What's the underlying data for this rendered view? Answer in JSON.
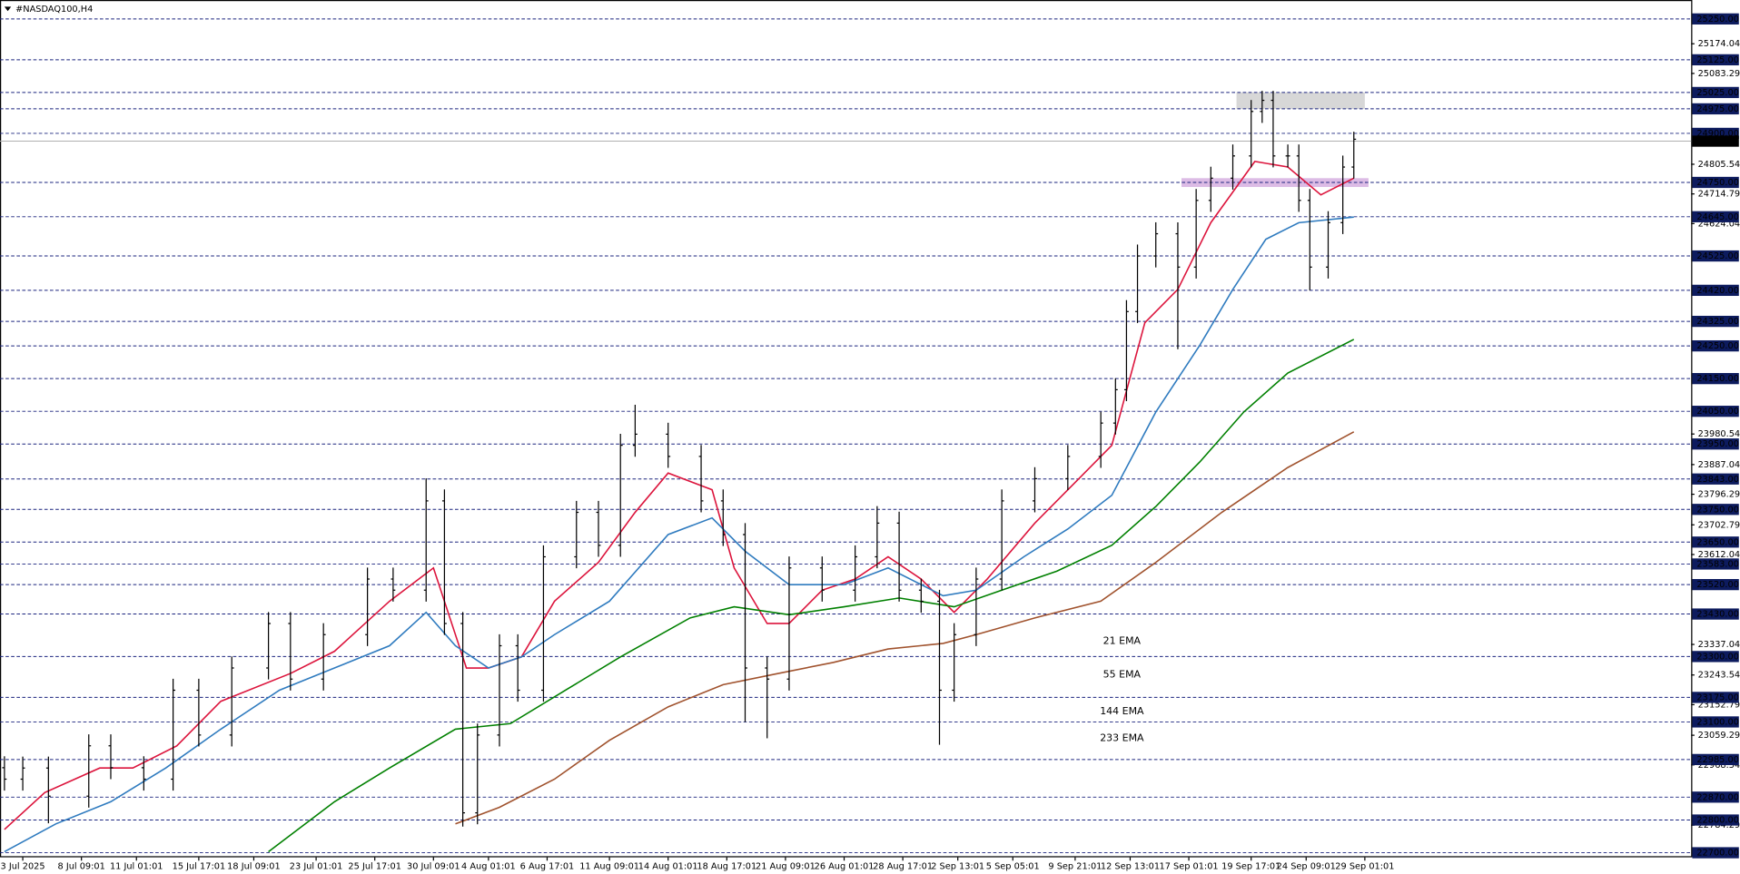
{
  "chart_data": {
    "type": "ohlc",
    "title": "#NASDAQ100,H4",
    "xlim": [
      0,
      460
    ],
    "ylim": [
      22686,
      25267
    ],
    "candles": {
      "color": "#000000",
      "x": [
        0,
        5,
        12,
        23,
        29,
        38,
        46,
        53,
        62,
        72,
        78,
        87,
        99,
        106,
        115,
        120,
        125,
        129,
        135,
        140,
        147,
        156,
        162,
        168,
        172,
        181,
        190,
        196,
        202,
        208,
        214,
        223,
        232,
        238,
        244,
        250,
        255,
        259,
        265,
        272,
        281,
        290,
        299,
        303,
        306,
        309,
        314,
        320,
        325,
        329,
        335,
        340,
        343,
        346,
        350,
        353,
        356,
        361,
        365,
        368
      ],
      "open": [
        22960,
        22925,
        22959,
        22873,
        23027,
        22960,
        22925,
        23197,
        23060,
        23265,
        23401,
        23231,
        23367,
        23537,
        23503,
        23776,
        23401,
        22822,
        23060,
        23333,
        23197,
        23605,
        23741,
        23640,
        23946,
        23980,
        23912,
        23776,
        23673,
        23265,
        23231,
        23571,
        23503,
        23605,
        23708,
        23503,
        23469,
        23197,
        23367,
        23537,
        23776,
        23844,
        23912,
        24014,
        24116,
        24355,
        24525,
        24593,
        24491,
        24695,
        24763,
        24831,
        24967,
        25001,
        24831,
        24831,
        24695,
        24491,
        24627,
        24797
      ],
      "high": [
        22995,
        22994,
        22994,
        23062,
        23062,
        22995,
        23232,
        23232,
        23300,
        23436,
        23436,
        23402,
        23572,
        23572,
        23845,
        23811,
        23436,
        23095,
        23368,
        23368,
        23640,
        23776,
        23776,
        23981,
        24070,
        24015,
        23947,
        23811,
        23708,
        23300,
        23606,
        23606,
        23640,
        23760,
        23743,
        23538,
        23504,
        23402,
        23572,
        23811,
        23879,
        23947,
        24049,
        24151,
        24390,
        24560,
        24628,
        24628,
        24730,
        24798,
        24866,
        25002,
        25030,
        25030,
        24866,
        24866,
        24730,
        24662,
        24832,
        24905
      ],
      "low": [
        22890,
        22890,
        22790,
        22838,
        22925,
        22890,
        22890,
        23025,
        23025,
        23230,
        23196,
        23196,
        23332,
        23468,
        23468,
        23366,
        22780,
        22787,
        23025,
        23162,
        23162,
        23570,
        23605,
        23605,
        23911,
        23877,
        23741,
        23638,
        23100,
        23050,
        23196,
        23468,
        23468,
        23570,
        23468,
        23434,
        23030,
        23162,
        23332,
        23502,
        23741,
        23809,
        23877,
        23979,
        24081,
        24320,
        24490,
        24240,
        24456,
        24660,
        24728,
        24796,
        24932,
        24796,
        24796,
        24660,
        24420,
        24456,
        24592,
        24762
      ],
      "close": [
        22925,
        22959,
        22873,
        23027,
        22960,
        22925,
        23197,
        23060,
        23265,
        23401,
        23231,
        23367,
        23537,
        23503,
        23776,
        23401,
        22822,
        23060,
        23333,
        23197,
        23605,
        23741,
        23640,
        23946,
        23980,
        23912,
        23776,
        23673,
        23265,
        23231,
        23571,
        23503,
        23605,
        23708,
        23503,
        23469,
        23197,
        23367,
        23537,
        23776,
        23844,
        23912,
        24014,
        24116,
        24355,
        24525,
        24593,
        24491,
        24695,
        24763,
        24831,
        24967,
        25001,
        24831,
        24831,
        24695,
        24491,
        24627,
        24797,
        24882
      ]
    },
    "series": [
      {
        "name": "21 EMA",
        "color": "#dc143c",
        "x": [
          0,
          11,
          26,
          35,
          47,
          59,
          78,
          90,
          105,
          117,
          126,
          132,
          141,
          150,
          162,
          172,
          181,
          193,
          199,
          208,
          214,
          223,
          232,
          241,
          250,
          259,
          268,
          281,
          293,
          302,
          311,
          320,
          329,
          341,
          350,
          359,
          368
        ],
        "values": [
          22771,
          22884,
          22959,
          22959,
          23027,
          23163,
          23248,
          23316,
          23469,
          23571,
          23265,
          23265,
          23299,
          23469,
          23588,
          23741,
          23861,
          23810,
          23571,
          23401,
          23401,
          23503,
          23537,
          23605,
          23537,
          23435,
          23537,
          23708,
          23844,
          23946,
          24321,
          24423,
          24627,
          24814,
          24797,
          24712,
          24763
        ]
      },
      {
        "name": "55 EMA",
        "color": "#2f7bbf",
        "x": [
          0,
          14,
          29,
          44,
          59,
          75,
          90,
          105,
          115,
          123,
          132,
          141,
          150,
          165,
          181,
          193,
          202,
          214,
          229,
          241,
          256,
          265,
          278,
          290,
          302,
          314,
          326,
          335,
          344,
          353,
          368
        ],
        "values": [
          22703,
          22788,
          22856,
          22959,
          23078,
          23197,
          23265,
          23333,
          23435,
          23333,
          23265,
          23299,
          23367,
          23469,
          23673,
          23724,
          23622,
          23520,
          23520,
          23571,
          23486,
          23503,
          23605,
          23690,
          23793,
          24048,
          24252,
          24423,
          24576,
          24627,
          24644
        ]
      },
      {
        "name": "144 EMA",
        "color": "#008000",
        "x": [
          72,
          90,
          105,
          123,
          138,
          153,
          168,
          187,
          199,
          214,
          229,
          244,
          259,
          272,
          287,
          302,
          314,
          326,
          338,
          350,
          368
        ],
        "values": [
          22703,
          22856,
          22959,
          23078,
          23095,
          23197,
          23299,
          23418,
          23452,
          23428,
          23452,
          23479,
          23452,
          23503,
          23561,
          23640,
          23759,
          23895,
          24048,
          24167,
          24270
        ]
      },
      {
        "name": "233 EMA",
        "color": "#a0522d",
        "x": [
          123,
          135,
          150,
          165,
          181,
          196,
          211,
          226,
          241,
          256,
          265,
          281,
          299,
          314,
          332,
          350,
          368
        ],
        "values": [
          22788,
          22839,
          22925,
          23044,
          23146,
          23214,
          23248,
          23282,
          23323,
          23340,
          23367,
          23418,
          23469,
          23588,
          23741,
          23878,
          23987
        ]
      }
    ],
    "zones": [
      {
        "from": 24975,
        "to": 25025,
        "start": 336,
        "end": 371,
        "color": "#d3d3d3"
      },
      {
        "from": 24736,
        "to": 24763,
        "start": 321,
        "end": 372,
        "color": "#d8b4e2"
      }
    ],
    "last_price": 24876.12,
    "levels": [
      {
        "value": 25250,
        "label": "25250.00"
      },
      {
        "value": 25125,
        "label": "25125.00"
      },
      {
        "value": 25025,
        "label": "25025.00"
      },
      {
        "value": 24975,
        "label": "24975.00"
      },
      {
        "value": 24900,
        "label": "24900.00"
      },
      {
        "value": 24750,
        "label": "24750.00"
      },
      {
        "value": 24645,
        "label": "24645.00"
      },
      {
        "value": 24525,
        "label": "24525.00"
      },
      {
        "value": 24420,
        "label": "24420.00"
      },
      {
        "value": 24325,
        "label": "24325.00"
      },
      {
        "value": 24250,
        "label": "24250.00"
      },
      {
        "value": 24150,
        "label": "24150.00"
      },
      {
        "value": 24050,
        "label": "24050.00"
      },
      {
        "value": 23950,
        "label": "23950.00"
      },
      {
        "value": 23843,
        "label": "23843.00"
      },
      {
        "value": 23750,
        "label": "23750.00"
      },
      {
        "value": 23650,
        "label": "23650.00"
      },
      {
        "value": 23583,
        "label": "23583.00"
      },
      {
        "value": 23520,
        "label": "23520.00"
      },
      {
        "value": 23430,
        "label": "23430.00"
      },
      {
        "value": 23300,
        "label": "23300.00"
      },
      {
        "value": 23175,
        "label": "23175.00"
      },
      {
        "value": 23100,
        "label": "23100.00"
      },
      {
        "value": 22985,
        "label": "22985.00"
      },
      {
        "value": 22870,
        "label": "22870.00"
      },
      {
        "value": 22800,
        "label": "22800.00"
      },
      {
        "value": 22700,
        "label": "22700.00"
      }
    ],
    "yticks": [
      25174.04,
      25083.29,
      24805.54,
      24714.79,
      24624.04,
      23980.54,
      23887.04,
      23796.29,
      23702.79,
      23612.04,
      23337.04,
      23243.54,
      23152.79,
      23059.29,
      22968.54,
      22784.29
    ],
    "xticks": [
      {
        "value": 5,
        "label": "3 Jul 2025"
      },
      {
        "value": 21,
        "label": "8 Jul 09:01"
      },
      {
        "value": 36,
        "label": "11 Jul 01:01"
      },
      {
        "value": 53,
        "label": "15 Jul 17:01"
      },
      {
        "value": 68,
        "label": "18 Jul 09:01"
      },
      {
        "value": 85,
        "label": "23 Jul 01:01"
      },
      {
        "value": 101,
        "label": "25 Jul 17:01"
      },
      {
        "value": 117,
        "label": "30 Jul 09:01"
      },
      {
        "value": 132,
        "label": "4 Aug 01:01"
      },
      {
        "value": 148,
        "label": "6 Aug 17:01"
      },
      {
        "value": 165,
        "label": "11 Aug 09:01"
      },
      {
        "value": 181,
        "label": "14 Aug 01:01"
      },
      {
        "value": 197,
        "label": "18 Aug 17:01"
      },
      {
        "value": 213,
        "label": "21 Aug 09:01"
      },
      {
        "value": 229,
        "label": "26 Aug 01:01"
      },
      {
        "value": 245,
        "label": "28 Aug 17:01"
      },
      {
        "value": 260,
        "label": "2 Sep 13:01"
      },
      {
        "value": 275,
        "label": "5 Sep 05:01"
      },
      {
        "value": 292,
        "label": "9 Sep 21:01"
      },
      {
        "value": 307,
        "label": "12 Sep 13:01"
      },
      {
        "value": 323,
        "label": "17 Sep 01:01"
      },
      {
        "value": 340,
        "label": "19 Sep 17:01"
      },
      {
        "value": 355,
        "label": "24 Sep 09:01"
      },
      {
        "value": 371,
        "label": "29 Sep 01:01"
      }
    ]
  }
}
